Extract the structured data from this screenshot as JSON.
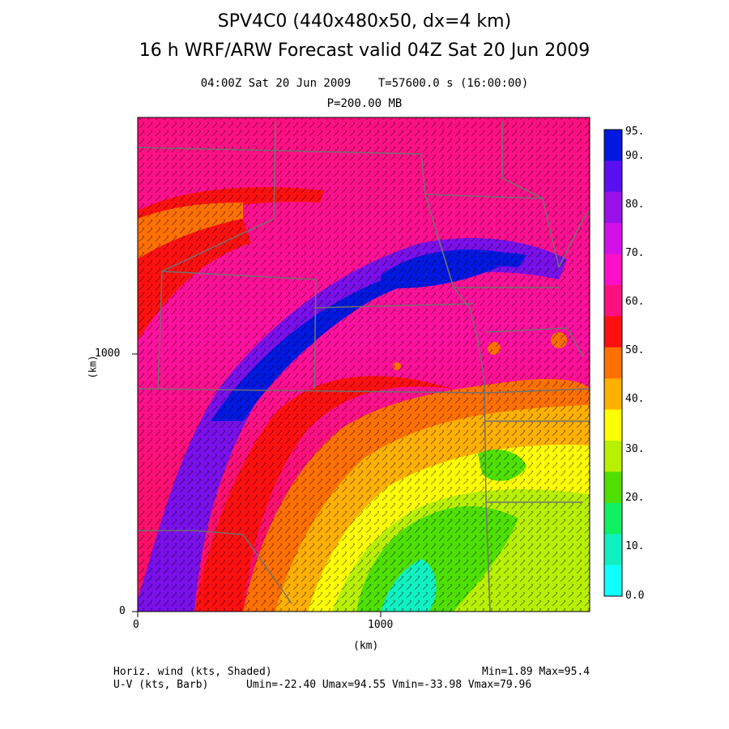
{
  "header": {
    "title_line1": "SPV4C0 (440x480x50, dx=4 km)",
    "title_line2": "16 h WRF/ARW Forecast valid 04Z Sat 20 Jun 2009",
    "valid_time": "04:00Z Sat 20 Jun 2009",
    "forecast_time": "T=57600.0 s (16:00:00)",
    "level": "P=200.00 MB"
  },
  "axes": {
    "x_label": "(km)",
    "y_label": "(km)",
    "x_ticks": [
      "0",
      "1000"
    ],
    "y_ticks": [
      "0",
      "1000"
    ]
  },
  "colorbar": {
    "labels": [
      "95.",
      "90.",
      "80.",
      "70.",
      "60.",
      "50.",
      "40.",
      "30.",
      "20.",
      "10.",
      "0.0"
    ],
    "colors": [
      "#0018e0",
      "#5a10f0",
      "#9a10e8",
      "#d410e8",
      "#ff10c8",
      "#ff1080",
      "#ff1010",
      "#ff7000",
      "#ffb000",
      "#ffff00",
      "#b8f000",
      "#50e000",
      "#10f060",
      "#10f0c0",
      "#10ffff"
    ]
  },
  "footer": {
    "field1": "Horiz. wind (kts, Shaded)",
    "field2": "U-V (kts, Barb)",
    "minmax": "Min=1.89 Max=95.4",
    "uv_stats": "Umin=-22.40 Umax=94.55 Vmin=-33.98 Vmax=79.96"
  }
}
